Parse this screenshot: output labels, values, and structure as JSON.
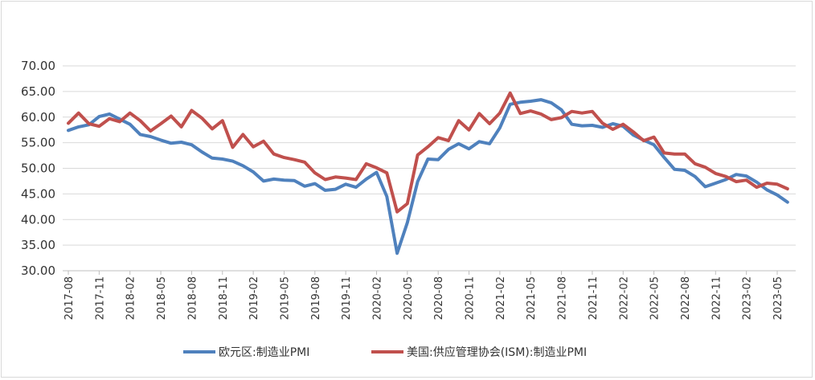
{
  "chart_data": {
    "type": "line",
    "title": "",
    "xlabel": "",
    "ylabel": "",
    "ylim": [
      30,
      70
    ],
    "yticks": [
      "30.00",
      "35.00",
      "40.00",
      "45.00",
      "50.00",
      "55.00",
      "60.00",
      "65.00",
      "70.00"
    ],
    "grid": "horizontal",
    "legend": "bottom",
    "x": [
      "2017-08",
      "2017-09",
      "2017-10",
      "2017-11",
      "2017-12",
      "2018-01",
      "2018-02",
      "2018-03",
      "2018-04",
      "2018-05",
      "2018-06",
      "2018-07",
      "2018-08",
      "2018-09",
      "2018-10",
      "2018-11",
      "2018-12",
      "2019-01",
      "2019-02",
      "2019-03",
      "2019-04",
      "2019-05",
      "2019-06",
      "2019-07",
      "2019-08",
      "2019-09",
      "2019-10",
      "2019-11",
      "2019-12",
      "2020-01",
      "2020-02",
      "2020-03",
      "2020-04",
      "2020-05",
      "2020-06",
      "2020-07",
      "2020-08",
      "2020-09",
      "2020-10",
      "2020-11",
      "2020-12",
      "2021-01",
      "2021-02",
      "2021-03",
      "2021-04",
      "2021-05",
      "2021-06",
      "2021-07",
      "2021-08",
      "2021-09",
      "2021-10",
      "2021-11",
      "2021-12",
      "2022-01",
      "2022-02",
      "2022-03",
      "2022-04",
      "2022-05",
      "2022-06",
      "2022-07",
      "2022-08",
      "2022-09",
      "2022-10",
      "2022-11",
      "2022-12",
      "2023-01",
      "2023-02",
      "2023-03",
      "2023-04",
      "2023-05",
      "2023-06"
    ],
    "tick_labels": [
      "2017-08",
      "2017-11",
      "2018-02",
      "2018-05",
      "2018-08",
      "2018-11",
      "2019-02",
      "2019-05",
      "2019-08",
      "2019-11",
      "2020-02",
      "2020-05",
      "2020-08",
      "2020-11",
      "2021-02",
      "2021-05",
      "2021-08",
      "2021-11",
      "2022-02",
      "2022-05",
      "2022-08",
      "2022-11",
      "2023-02",
      "2023-05"
    ],
    "series": [
      {
        "name": "欧元区:制造业PMI",
        "color": "#4f81bd",
        "values": [
          57.4,
          58.1,
          58.5,
          60.1,
          60.6,
          59.6,
          58.6,
          56.6,
          56.2,
          55.5,
          54.9,
          55.1,
          54.6,
          53.2,
          52.0,
          51.8,
          51.4,
          50.5,
          49.3,
          47.5,
          47.9,
          47.7,
          47.6,
          46.5,
          47.0,
          45.7,
          45.9,
          46.9,
          46.3,
          47.9,
          49.2,
          44.5,
          33.4,
          39.4,
          47.4,
          51.8,
          51.7,
          53.7,
          54.8,
          53.8,
          55.2,
          54.8,
          57.9,
          62.5,
          62.9,
          63.1,
          63.4,
          62.8,
          61.4,
          58.6,
          58.3,
          58.4,
          58.0,
          58.7,
          58.2,
          56.5,
          55.5,
          54.6,
          52.1,
          49.8,
          49.6,
          48.4,
          46.4,
          47.1,
          47.8,
          48.8,
          48.5,
          47.3,
          45.8,
          44.8,
          43.4
        ]
      },
      {
        "name": "美国:供应管理协会(ISM):制造业PMI",
        "color": "#c0504d",
        "values": [
          58.8,
          60.8,
          58.7,
          58.2,
          59.7,
          59.1,
          60.8,
          59.3,
          57.3,
          58.7,
          60.2,
          58.1,
          61.3,
          59.8,
          57.7,
          59.3,
          54.1,
          56.6,
          54.2,
          55.3,
          52.8,
          52.1,
          51.7,
          51.2,
          49.1,
          47.8,
          48.3,
          48.1,
          47.8,
          50.9,
          50.1,
          49.1,
          41.5,
          43.1,
          52.6,
          54.2,
          56.0,
          55.4,
          59.3,
          57.5,
          60.7,
          58.7,
          60.8,
          64.7,
          60.7,
          61.2,
          60.6,
          59.5,
          59.9,
          61.1,
          60.8,
          61.1,
          58.8,
          57.6,
          58.6,
          57.1,
          55.4,
          56.1,
          53.0,
          52.8,
          52.8,
          50.9,
          50.2,
          49.0,
          48.4,
          47.4,
          47.7,
          46.3,
          47.1,
          46.9,
          46.0
        ]
      }
    ]
  }
}
